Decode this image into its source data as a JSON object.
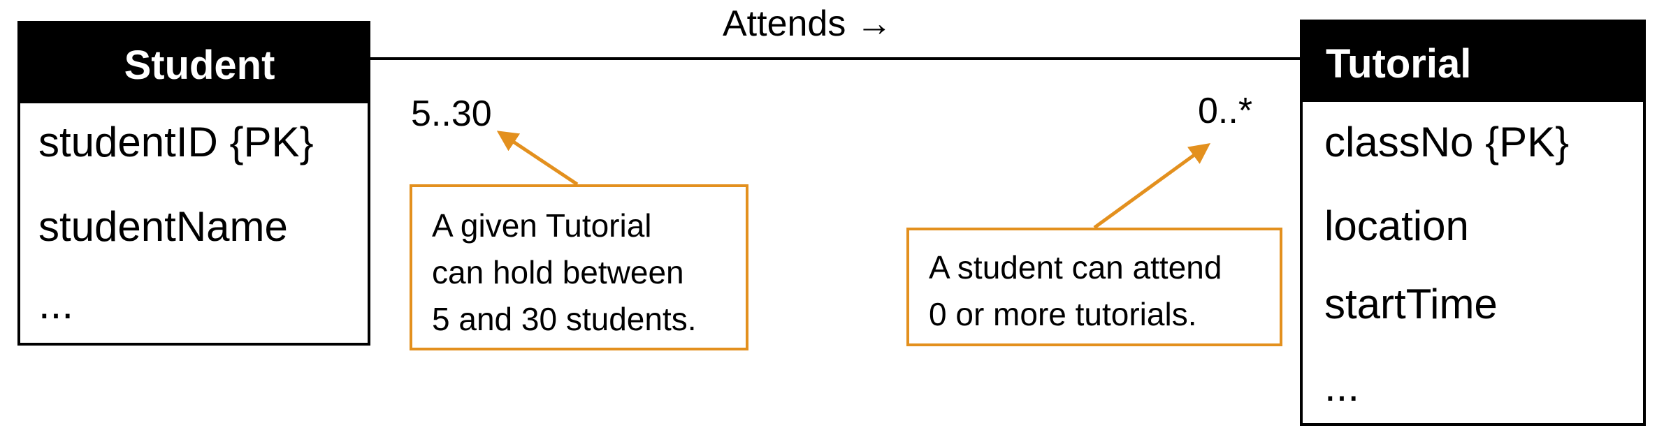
{
  "association": {
    "label": "Attends →"
  },
  "student": {
    "title": "Student",
    "attributes": [
      "studentID {PK}",
      "studentName",
      "..."
    ]
  },
  "tutorial": {
    "title": "Tutorial",
    "attributes": [
      "classNo {PK}",
      "location",
      "startTime",
      "..."
    ]
  },
  "multiplicity": {
    "student_end": "5..30",
    "tutorial_end": "0..*"
  },
  "notes": {
    "left": {
      "lines": [
        "A given Tutorial",
        "can hold between",
        "5 and 30 students."
      ]
    },
    "right": {
      "lines": [
        "A student can attend",
        "0 or more tutorials."
      ]
    }
  },
  "colors": {
    "note_accent": "#E3901E",
    "entity_header": "#000000"
  }
}
